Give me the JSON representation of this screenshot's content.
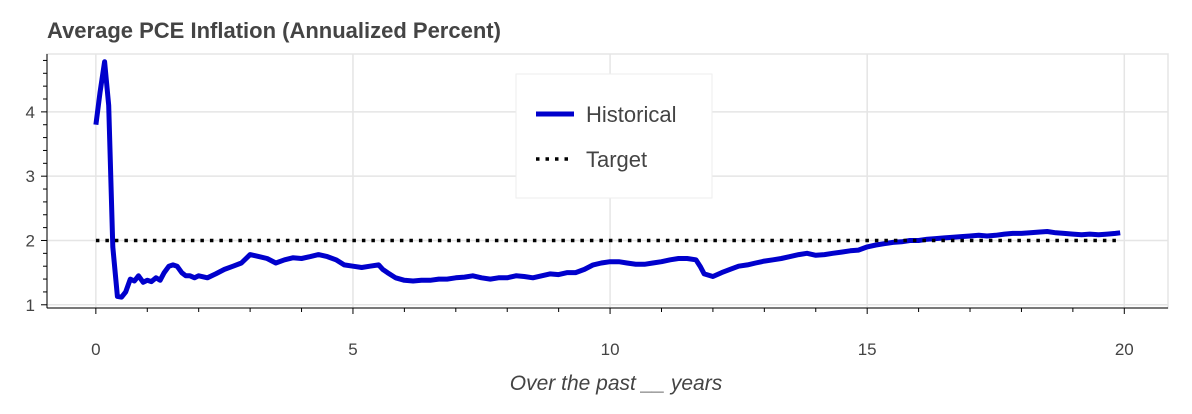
{
  "chart_data": {
    "type": "line",
    "title": "Average PCE Inflation (Annualized Percent)",
    "xlabel": "Over the past __ years",
    "ylabel": "",
    "xlim": [
      -0.95,
      20.85
    ],
    "ylim": [
      0.95,
      4.9
    ],
    "x_ticks": [
      0,
      5,
      10,
      15,
      20
    ],
    "y_ticks": [
      1,
      2,
      3,
      4
    ],
    "grid": true,
    "legend_position": "top-center",
    "series": [
      {
        "name": "Historical",
        "color": "#0000cc",
        "style": "solid",
        "points": [
          [
            0.0,
            3.8
          ],
          [
            0.08,
            4.3
          ],
          [
            0.17,
            4.78
          ],
          [
            0.25,
            4.1
          ],
          [
            0.33,
            1.9
          ],
          [
            0.42,
            1.13
          ],
          [
            0.5,
            1.12
          ],
          [
            0.58,
            1.2
          ],
          [
            0.67,
            1.4
          ],
          [
            0.75,
            1.37
          ],
          [
            0.83,
            1.45
          ],
          [
            0.92,
            1.35
          ],
          [
            1.0,
            1.38
          ],
          [
            1.08,
            1.36
          ],
          [
            1.17,
            1.42
          ],
          [
            1.25,
            1.38
          ],
          [
            1.33,
            1.5
          ],
          [
            1.42,
            1.6
          ],
          [
            1.5,
            1.62
          ],
          [
            1.58,
            1.6
          ],
          [
            1.67,
            1.5
          ],
          [
            1.75,
            1.45
          ],
          [
            1.83,
            1.45
          ],
          [
            1.92,
            1.42
          ],
          [
            2.0,
            1.45
          ],
          [
            2.17,
            1.42
          ],
          [
            2.33,
            1.48
          ],
          [
            2.5,
            1.55
          ],
          [
            2.67,
            1.6
          ],
          [
            2.83,
            1.65
          ],
          [
            3.0,
            1.78
          ],
          [
            3.17,
            1.75
          ],
          [
            3.33,
            1.72
          ],
          [
            3.5,
            1.65
          ],
          [
            3.67,
            1.7
          ],
          [
            3.83,
            1.73
          ],
          [
            4.0,
            1.72
          ],
          [
            4.17,
            1.75
          ],
          [
            4.33,
            1.78
          ],
          [
            4.5,
            1.75
          ],
          [
            4.67,
            1.7
          ],
          [
            4.83,
            1.62
          ],
          [
            5.0,
            1.6
          ],
          [
            5.17,
            1.58
          ],
          [
            5.33,
            1.6
          ],
          [
            5.5,
            1.62
          ],
          [
            5.58,
            1.55
          ],
          [
            5.67,
            1.5
          ],
          [
            5.83,
            1.42
          ],
          [
            6.0,
            1.38
          ],
          [
            6.17,
            1.37
          ],
          [
            6.33,
            1.38
          ],
          [
            6.5,
            1.38
          ],
          [
            6.67,
            1.4
          ],
          [
            6.83,
            1.4
          ],
          [
            7.0,
            1.42
          ],
          [
            7.17,
            1.43
          ],
          [
            7.33,
            1.45
          ],
          [
            7.5,
            1.42
          ],
          [
            7.67,
            1.4
          ],
          [
            7.83,
            1.42
          ],
          [
            8.0,
            1.42
          ],
          [
            8.17,
            1.45
          ],
          [
            8.33,
            1.44
          ],
          [
            8.5,
            1.42
          ],
          [
            8.67,
            1.45
          ],
          [
            8.83,
            1.48
          ],
          [
            9.0,
            1.47
          ],
          [
            9.17,
            1.5
          ],
          [
            9.33,
            1.5
          ],
          [
            9.5,
            1.55
          ],
          [
            9.67,
            1.62
          ],
          [
            9.83,
            1.65
          ],
          [
            10.0,
            1.67
          ],
          [
            10.17,
            1.67
          ],
          [
            10.33,
            1.65
          ],
          [
            10.5,
            1.63
          ],
          [
            10.67,
            1.63
          ],
          [
            10.83,
            1.65
          ],
          [
            11.0,
            1.67
          ],
          [
            11.17,
            1.7
          ],
          [
            11.33,
            1.72
          ],
          [
            11.5,
            1.72
          ],
          [
            11.67,
            1.7
          ],
          [
            11.75,
            1.6
          ],
          [
            11.83,
            1.48
          ],
          [
            12.0,
            1.44
          ],
          [
            12.17,
            1.5
          ],
          [
            12.33,
            1.55
          ],
          [
            12.5,
            1.6
          ],
          [
            12.67,
            1.62
          ],
          [
            12.83,
            1.65
          ],
          [
            13.0,
            1.68
          ],
          [
            13.17,
            1.7
          ],
          [
            13.33,
            1.72
          ],
          [
            13.5,
            1.75
          ],
          [
            13.67,
            1.78
          ],
          [
            13.83,
            1.8
          ],
          [
            14.0,
            1.77
          ],
          [
            14.17,
            1.78
          ],
          [
            14.33,
            1.8
          ],
          [
            14.5,
            1.82
          ],
          [
            14.67,
            1.84
          ],
          [
            14.83,
            1.85
          ],
          [
            15.0,
            1.9
          ],
          [
            15.17,
            1.93
          ],
          [
            15.33,
            1.95
          ],
          [
            15.5,
            1.97
          ],
          [
            15.67,
            1.98
          ],
          [
            15.83,
            2.0
          ],
          [
            16.0,
            2.0
          ],
          [
            16.17,
            2.02
          ],
          [
            16.33,
            2.03
          ],
          [
            16.5,
            2.04
          ],
          [
            16.67,
            2.05
          ],
          [
            16.83,
            2.06
          ],
          [
            17.0,
            2.07
          ],
          [
            17.17,
            2.08
          ],
          [
            17.33,
            2.07
          ],
          [
            17.5,
            2.08
          ],
          [
            17.67,
            2.1
          ],
          [
            17.83,
            2.11
          ],
          [
            18.0,
            2.11
          ],
          [
            18.17,
            2.12
          ],
          [
            18.33,
            2.13
          ],
          [
            18.5,
            2.14
          ],
          [
            18.67,
            2.12
          ],
          [
            18.83,
            2.11
          ],
          [
            19.0,
            2.1
          ],
          [
            19.17,
            2.09
          ],
          [
            19.33,
            2.1
          ],
          [
            19.5,
            2.09
          ],
          [
            19.67,
            2.1
          ],
          [
            19.83,
            2.11
          ],
          [
            19.92,
            2.12
          ]
        ]
      },
      {
        "name": "Target",
        "color": "#000000",
        "style": "dotted",
        "points": [
          [
            0.0,
            2.0
          ],
          [
            19.92,
            2.0
          ]
        ]
      }
    ]
  }
}
